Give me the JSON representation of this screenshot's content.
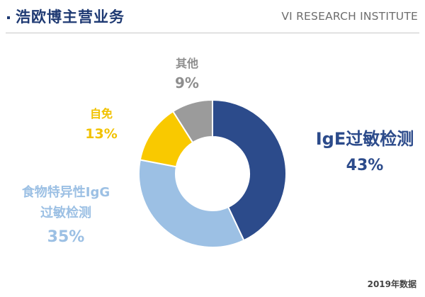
{
  "header": {
    "bullet": "·",
    "title": "浩欧博主营业务",
    "brand": "VI RESEARCH INSTITUTE"
  },
  "chart_data": {
    "type": "pie",
    "donut": true,
    "categories": [
      "IgE过敏检测",
      "食物特异性IgG过敏检测",
      "自免",
      "其他"
    ],
    "values": [
      43,
      35,
      13,
      9
    ],
    "unit": "%",
    "colors": [
      "#2c4b8b",
      "#9cc0e4",
      "#f9c900",
      "#9b9b9b"
    ],
    "labels": {
      "ige": {
        "name": "IgE过敏检测",
        "pct": "43%"
      },
      "food": {
        "name_line1": "食物特异性IgG",
        "name_line2": "过敏检测",
        "pct": "35%"
      },
      "auto": {
        "name": "自免",
        "pct": "13%"
      },
      "other": {
        "name": "其他",
        "pct": "9%"
      }
    },
    "legend": "none"
  },
  "footer": {
    "note": "2019年数据"
  }
}
